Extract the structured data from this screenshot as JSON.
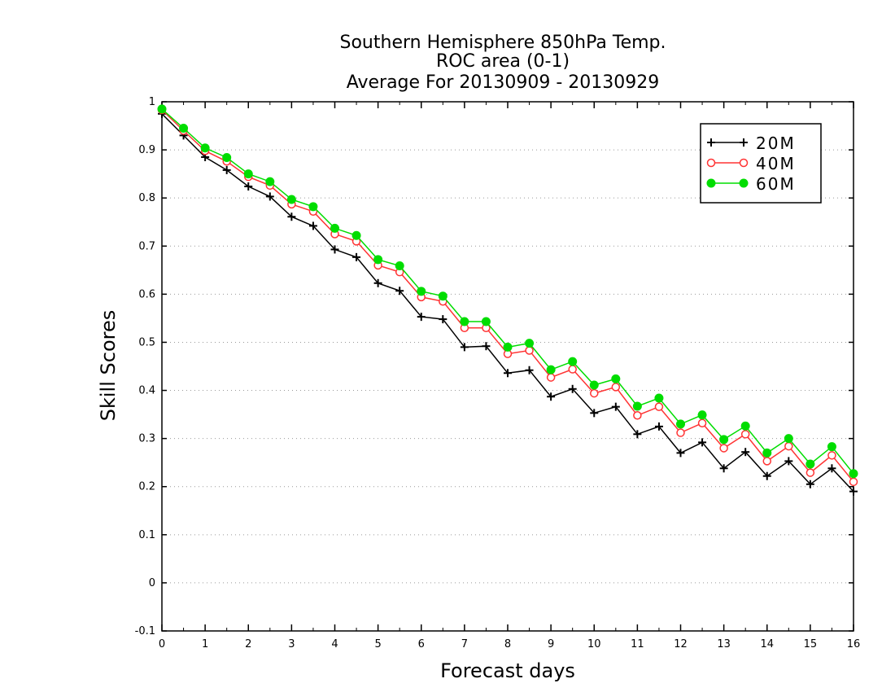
{
  "chart_data": {
    "type": "line",
    "title_lines": [
      "Southern Hemisphere 850hPa Temp.",
      "ROC area (0-1)",
      "Average For 20130909 - 20130929"
    ],
    "xlabel": "Forecast days",
    "ylabel": "Skill Scores",
    "xlim": [
      0,
      16
    ],
    "ylim": [
      -0.1,
      1
    ],
    "xticks": [
      0,
      1,
      2,
      3,
      4,
      5,
      6,
      7,
      8,
      9,
      10,
      11,
      12,
      13,
      14,
      15,
      16
    ],
    "xtick_labels": [
      "0",
      "1",
      "2",
      "3",
      "4",
      "5",
      "6",
      "7",
      "8",
      "9",
      "10",
      "11",
      "12",
      "13",
      "14",
      "15",
      "16"
    ],
    "yticks": [
      -0.1,
      0,
      0.1,
      0.2,
      0.3,
      0.4,
      0.5,
      0.6,
      0.7,
      0.8,
      0.9,
      1
    ],
    "ytick_labels": [
      "-0.1",
      "0",
      "0.1",
      "0.2",
      "0.3",
      "0.4",
      "0.5",
      "0.6",
      "0.7",
      "0.8",
      "0.9",
      "1"
    ],
    "grid": "horizontal dotted",
    "legend_position": "top-right",
    "x": [
      0,
      0.5,
      1,
      1.5,
      2,
      2.5,
      3,
      3.5,
      4,
      4.5,
      5,
      5.5,
      6,
      6.5,
      7,
      7.5,
      8,
      8.5,
      9,
      9.5,
      10,
      10.5,
      11,
      11.5,
      12,
      12.5,
      13,
      13.5,
      14,
      14.5,
      15,
      15.5,
      16
    ],
    "series": [
      {
        "name": "20M",
        "color": "#000000",
        "marker": "plus",
        "values": [
          0.975,
          0.93,
          0.885,
          0.858,
          0.824,
          0.803,
          0.761,
          0.742,
          0.693,
          0.677,
          0.623,
          0.607,
          0.553,
          0.548,
          0.49,
          0.492,
          0.436,
          0.442,
          0.387,
          0.403,
          0.353,
          0.366,
          0.309,
          0.325,
          0.27,
          0.292,
          0.238,
          0.272,
          0.222,
          0.253,
          0.205,
          0.238,
          0.19
        ]
      },
      {
        "name": "40M",
        "color": "#ff3333",
        "marker": "open-circle",
        "values": [
          0.983,
          0.94,
          0.898,
          0.876,
          0.844,
          0.826,
          0.787,
          0.772,
          0.725,
          0.71,
          0.66,
          0.646,
          0.594,
          0.585,
          0.53,
          0.53,
          0.476,
          0.483,
          0.427,
          0.444,
          0.394,
          0.407,
          0.348,
          0.366,
          0.312,
          0.332,
          0.28,
          0.309,
          0.253,
          0.284,
          0.229,
          0.265,
          0.21
        ]
      },
      {
        "name": "60M",
        "color": "#00dd00",
        "marker": "filled-circle",
        "values": [
          0.985,
          0.945,
          0.904,
          0.884,
          0.85,
          0.834,
          0.797,
          0.782,
          0.737,
          0.722,
          0.672,
          0.659,
          0.606,
          0.596,
          0.543,
          0.543,
          0.49,
          0.498,
          0.443,
          0.46,
          0.411,
          0.424,
          0.367,
          0.384,
          0.33,
          0.349,
          0.298,
          0.326,
          0.27,
          0.3,
          0.247,
          0.283,
          0.227
        ]
      }
    ]
  }
}
